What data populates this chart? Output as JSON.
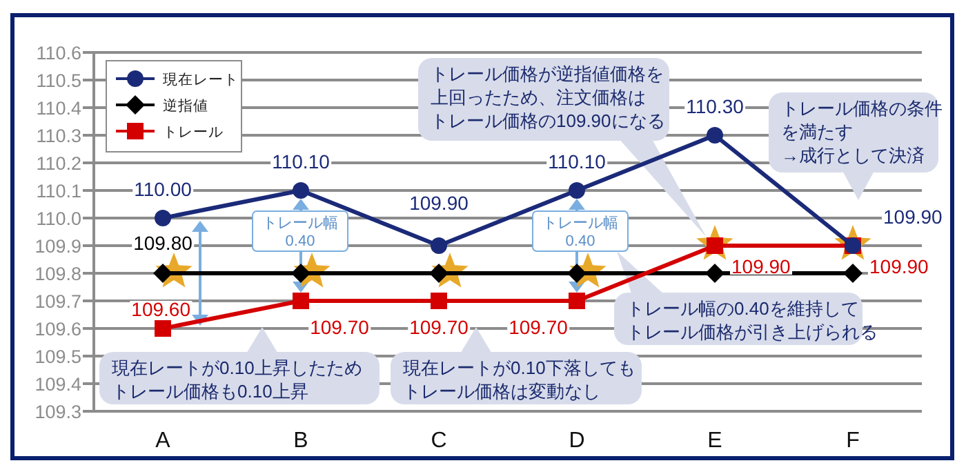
{
  "chart_data": {
    "type": "line",
    "categories": [
      "A",
      "B",
      "C",
      "D",
      "E",
      "F"
    ],
    "ylim": [
      109.3,
      110.6
    ],
    "yticks": [
      "109.3",
      "109.4",
      "109.5",
      "109.6",
      "109.7",
      "109.8",
      "109.9",
      "110.0",
      "110.1",
      "110.2",
      "110.3",
      "110.4",
      "110.5",
      "110.6"
    ],
    "grid": "y",
    "legend": "top left",
    "line_style": "solid",
    "series": [
      {
        "name": "現在レート",
        "color": "#1b2a78",
        "marker": "circle",
        "values": [
          110.0,
          110.1,
          109.9,
          110.1,
          110.3,
          109.9
        ],
        "value_labels": [
          "110.00",
          "110.10",
          "109.90",
          "110.10",
          "110.30",
          "109.90"
        ]
      },
      {
        "name": "逆指値",
        "color": "#000000",
        "marker": "diamond",
        "values": [
          109.8,
          109.8,
          109.8,
          109.8,
          109.8,
          109.8
        ],
        "value_labels": [
          "109.80",
          null,
          null,
          null,
          null,
          null
        ]
      },
      {
        "name": "トレール",
        "color": "#d40000",
        "marker": "square",
        "values": [
          109.6,
          109.7,
          109.7,
          109.7,
          109.9,
          109.9
        ],
        "value_labels": [
          "109.60",
          "109.70",
          "109.70",
          "109.70",
          "109.90",
          "109.90"
        ]
      }
    ],
    "annotations": [
      "トレール幅0.40",
      "トレール幅0.40",
      "現在レートが0.10上昇したためトレール価格も0.10上昇",
      "現在レートが0.10下落してもトレール価格は変動なし",
      "トレール幅の0.40を維持してトレール価格が引き上げられる",
      "トレール価格が逆指値価格を上回ったため、注文価格はトレール価格の109.90になる",
      "トレール価格の条件を満たす→成行として決済"
    ]
  }
}
